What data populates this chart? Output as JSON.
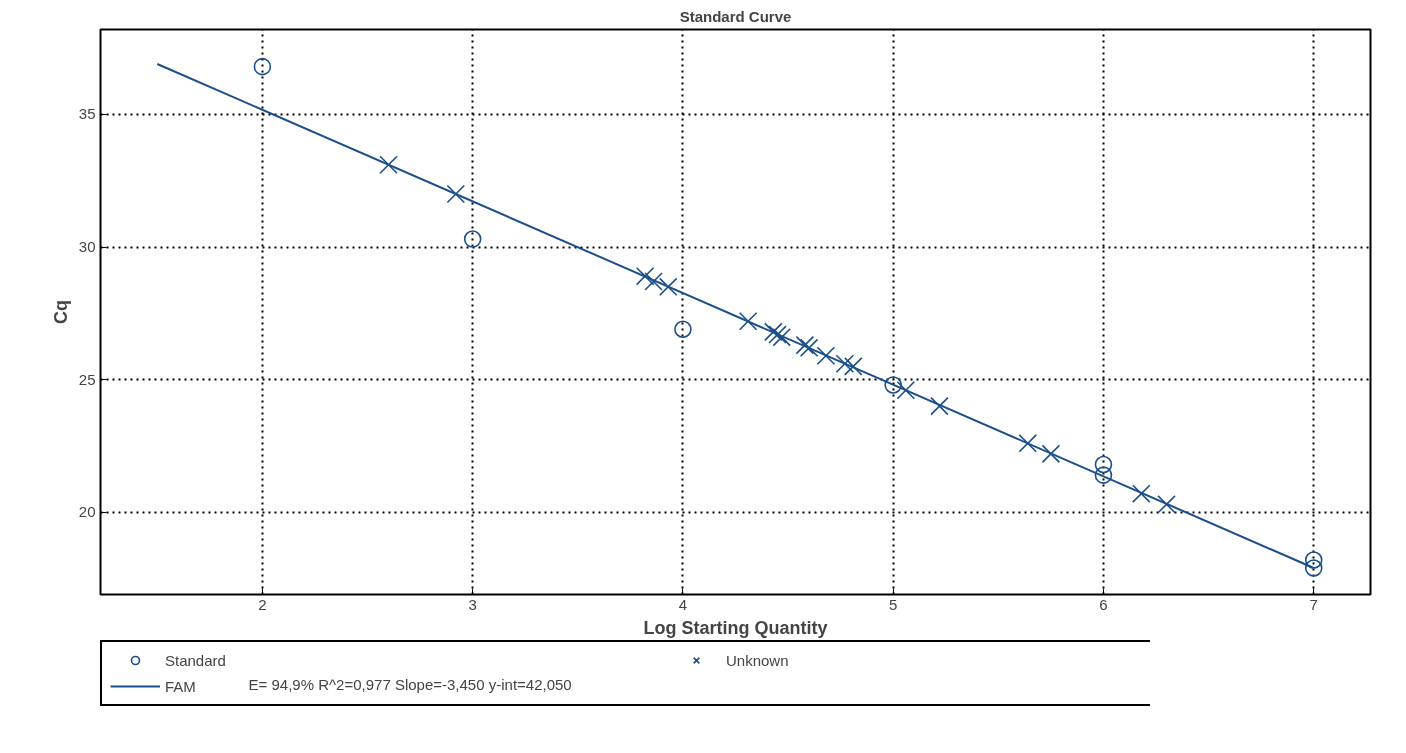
{
  "chart_data": {
    "type": "scatter",
    "title": "Standard Curve",
    "xlabel": "Log Starting Quantity",
    "ylabel": "Cq",
    "xlim": [
      1.23,
      7.27
    ],
    "ylim": [
      16.9,
      38.2
    ],
    "xticks": [
      2,
      3,
      4,
      5,
      6,
      7
    ],
    "yticks": [
      20,
      25,
      30,
      35
    ],
    "grid": true,
    "legend": "bottom",
    "series": [
      {
        "name": "Standard",
        "marker": "circle",
        "color": "#1b4f8a",
        "x": [
          2,
          3,
          4,
          5,
          6,
          6,
          7,
          7
        ],
        "values": [
          36.8,
          30.3,
          26.9,
          24.8,
          21.8,
          21.4,
          18.2,
          17.9
        ]
      },
      {
        "name": "Unknown",
        "marker": "cross",
        "color": "#1b4f8a",
        "x": [
          2.6,
          2.92,
          3.82,
          3.86,
          3.93,
          4.31,
          4.43,
          4.45,
          4.47,
          4.58,
          4.6,
          4.68,
          4.77,
          4.81,
          5.06,
          5.22,
          5.64,
          5.75,
          6.18,
          6.3
        ],
        "values": [
          33.1,
          32.0,
          28.9,
          28.7,
          28.5,
          27.2,
          26.8,
          26.7,
          26.6,
          26.3,
          26.2,
          25.9,
          25.6,
          25.5,
          24.6,
          24.0,
          22.6,
          22.2,
          20.7,
          20.3
        ]
      },
      {
        "name": "FAM",
        "type": "line",
        "line_style": "solid",
        "color": "#1b4f8a",
        "x": [
          1.5,
          7
        ],
        "values": [
          36.9,
          17.9
        ]
      }
    ],
    "annotations": [
      "E= 94,9% R^2=0,977 Slope=-3,450 y-int=42,050"
    ]
  }
}
